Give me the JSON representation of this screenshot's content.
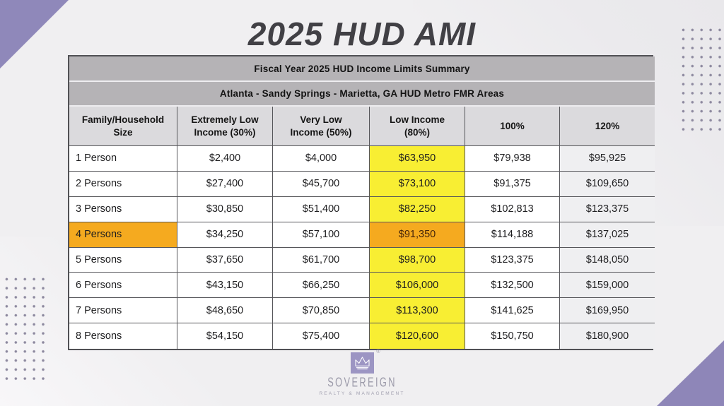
{
  "page": {
    "title": "2025 HUD AMI"
  },
  "chart_data": {
    "type": "table",
    "title": "2025 HUD AMI",
    "table_title": "Fiscal Year 2025 HUD Income Limits Summary",
    "table_subtitle": "Atlanta - Sandy Springs - Marietta, GA HUD Metro FMR Areas",
    "columns": [
      "Family/Household Size",
      "Extremely Low Income (30%)",
      "Very Low Income (50%)",
      "Low Income (80%)",
      "100%",
      "120%"
    ],
    "rows": [
      [
        "1 Person",
        "$2,400",
        "$4,000",
        "$63,950",
        "$79,938",
        "$95,925"
      ],
      [
        "2 Persons",
        "$27,400",
        "$45,700",
        "$73,100",
        "$91,375",
        "$109,650"
      ],
      [
        "3 Persons",
        "$30,850",
        "$51,400",
        "$82,250",
        "$102,813",
        "$123,375"
      ],
      [
        "4 Persons",
        "$34,250",
        "$57,100",
        "$91,350",
        "$114,188",
        "$137,025"
      ],
      [
        "5 Persons",
        "$37,650",
        "$61,700",
        "$98,700",
        "$123,375",
        "$148,050"
      ],
      [
        "6 Persons",
        "$43,150",
        "$66,250",
        "$106,000",
        "$132,500",
        "$159,000"
      ],
      [
        "7 Persons",
        "$48,650",
        "$70,850",
        "$113,300",
        "$141,625",
        "$169,950"
      ],
      [
        "8 Persons",
        "$54,150",
        "$75,400",
        "$120,600",
        "$150,750",
        "$180,900"
      ]
    ],
    "highlights": {
      "yellow_col_index": 3,
      "orange_row_index": 3,
      "yellow_column_label": "Low Income (80%)",
      "orange_row_label": "4 Persons"
    },
    "layout": {
      "grid": true,
      "legend": "none"
    }
  },
  "logo": {
    "name": "SOVEREIGN",
    "tagline": "REALTY & MANAGEMENT",
    "registered": "®"
  },
  "colors": {
    "accent_purple": "#8F88BA",
    "highlight_yellow": "#F8EE33",
    "highlight_orange": "#F5AA1F",
    "header_gray": "#B5B3B6",
    "subheader_gray": "#DBDADD",
    "col_120_gray": "#EFEFF1",
    "border_dark": "#56565A"
  }
}
